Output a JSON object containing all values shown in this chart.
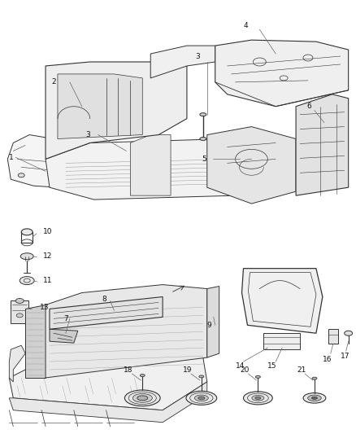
{
  "background_color": "#ffffff",
  "fig_width": 4.38,
  "fig_height": 5.33,
  "dpi": 100,
  "line_color": "#333333",
  "label_fontsize": 6.5,
  "label_color": "#111111",
  "leader_color": "#666666"
}
